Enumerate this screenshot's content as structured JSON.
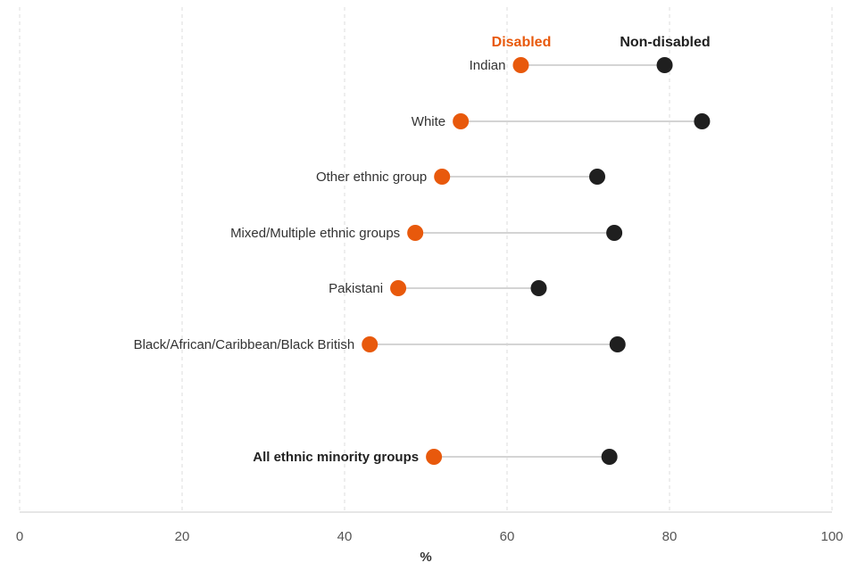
{
  "chart_data": {
    "type": "dot-plot",
    "xlabel": "%",
    "xlim": [
      0,
      100
    ],
    "xticks": [
      0,
      20,
      40,
      60,
      80,
      100
    ],
    "grid": "vertical dashed",
    "legend_position": "top",
    "series": [
      {
        "name": "Disabled",
        "color": "#e8590c"
      },
      {
        "name": "Non-disabled",
        "color": "#1f1f1f"
      }
    ],
    "categories": [
      {
        "label": "Indian",
        "disabled": 61.7,
        "non_disabled": 79.4,
        "bold": false
      },
      {
        "label": "White",
        "disabled": 54.3,
        "non_disabled": 84.0,
        "bold": false
      },
      {
        "label": "Other ethnic group",
        "disabled": 52.0,
        "non_disabled": 71.1,
        "bold": false
      },
      {
        "label": "Mixed/Multiple ethnic groups",
        "disabled": 48.7,
        "non_disabled": 73.2,
        "bold": false
      },
      {
        "label": "Pakistani",
        "disabled": 46.6,
        "non_disabled": 63.9,
        "bold": false
      },
      {
        "label": "Black/African/Caribbean/Black British",
        "disabled": 43.1,
        "non_disabled": 73.6,
        "bold": false
      },
      {
        "label": "All ethnic minority groups",
        "disabled": 51.0,
        "non_disabled": 72.6,
        "bold": true
      }
    ]
  }
}
